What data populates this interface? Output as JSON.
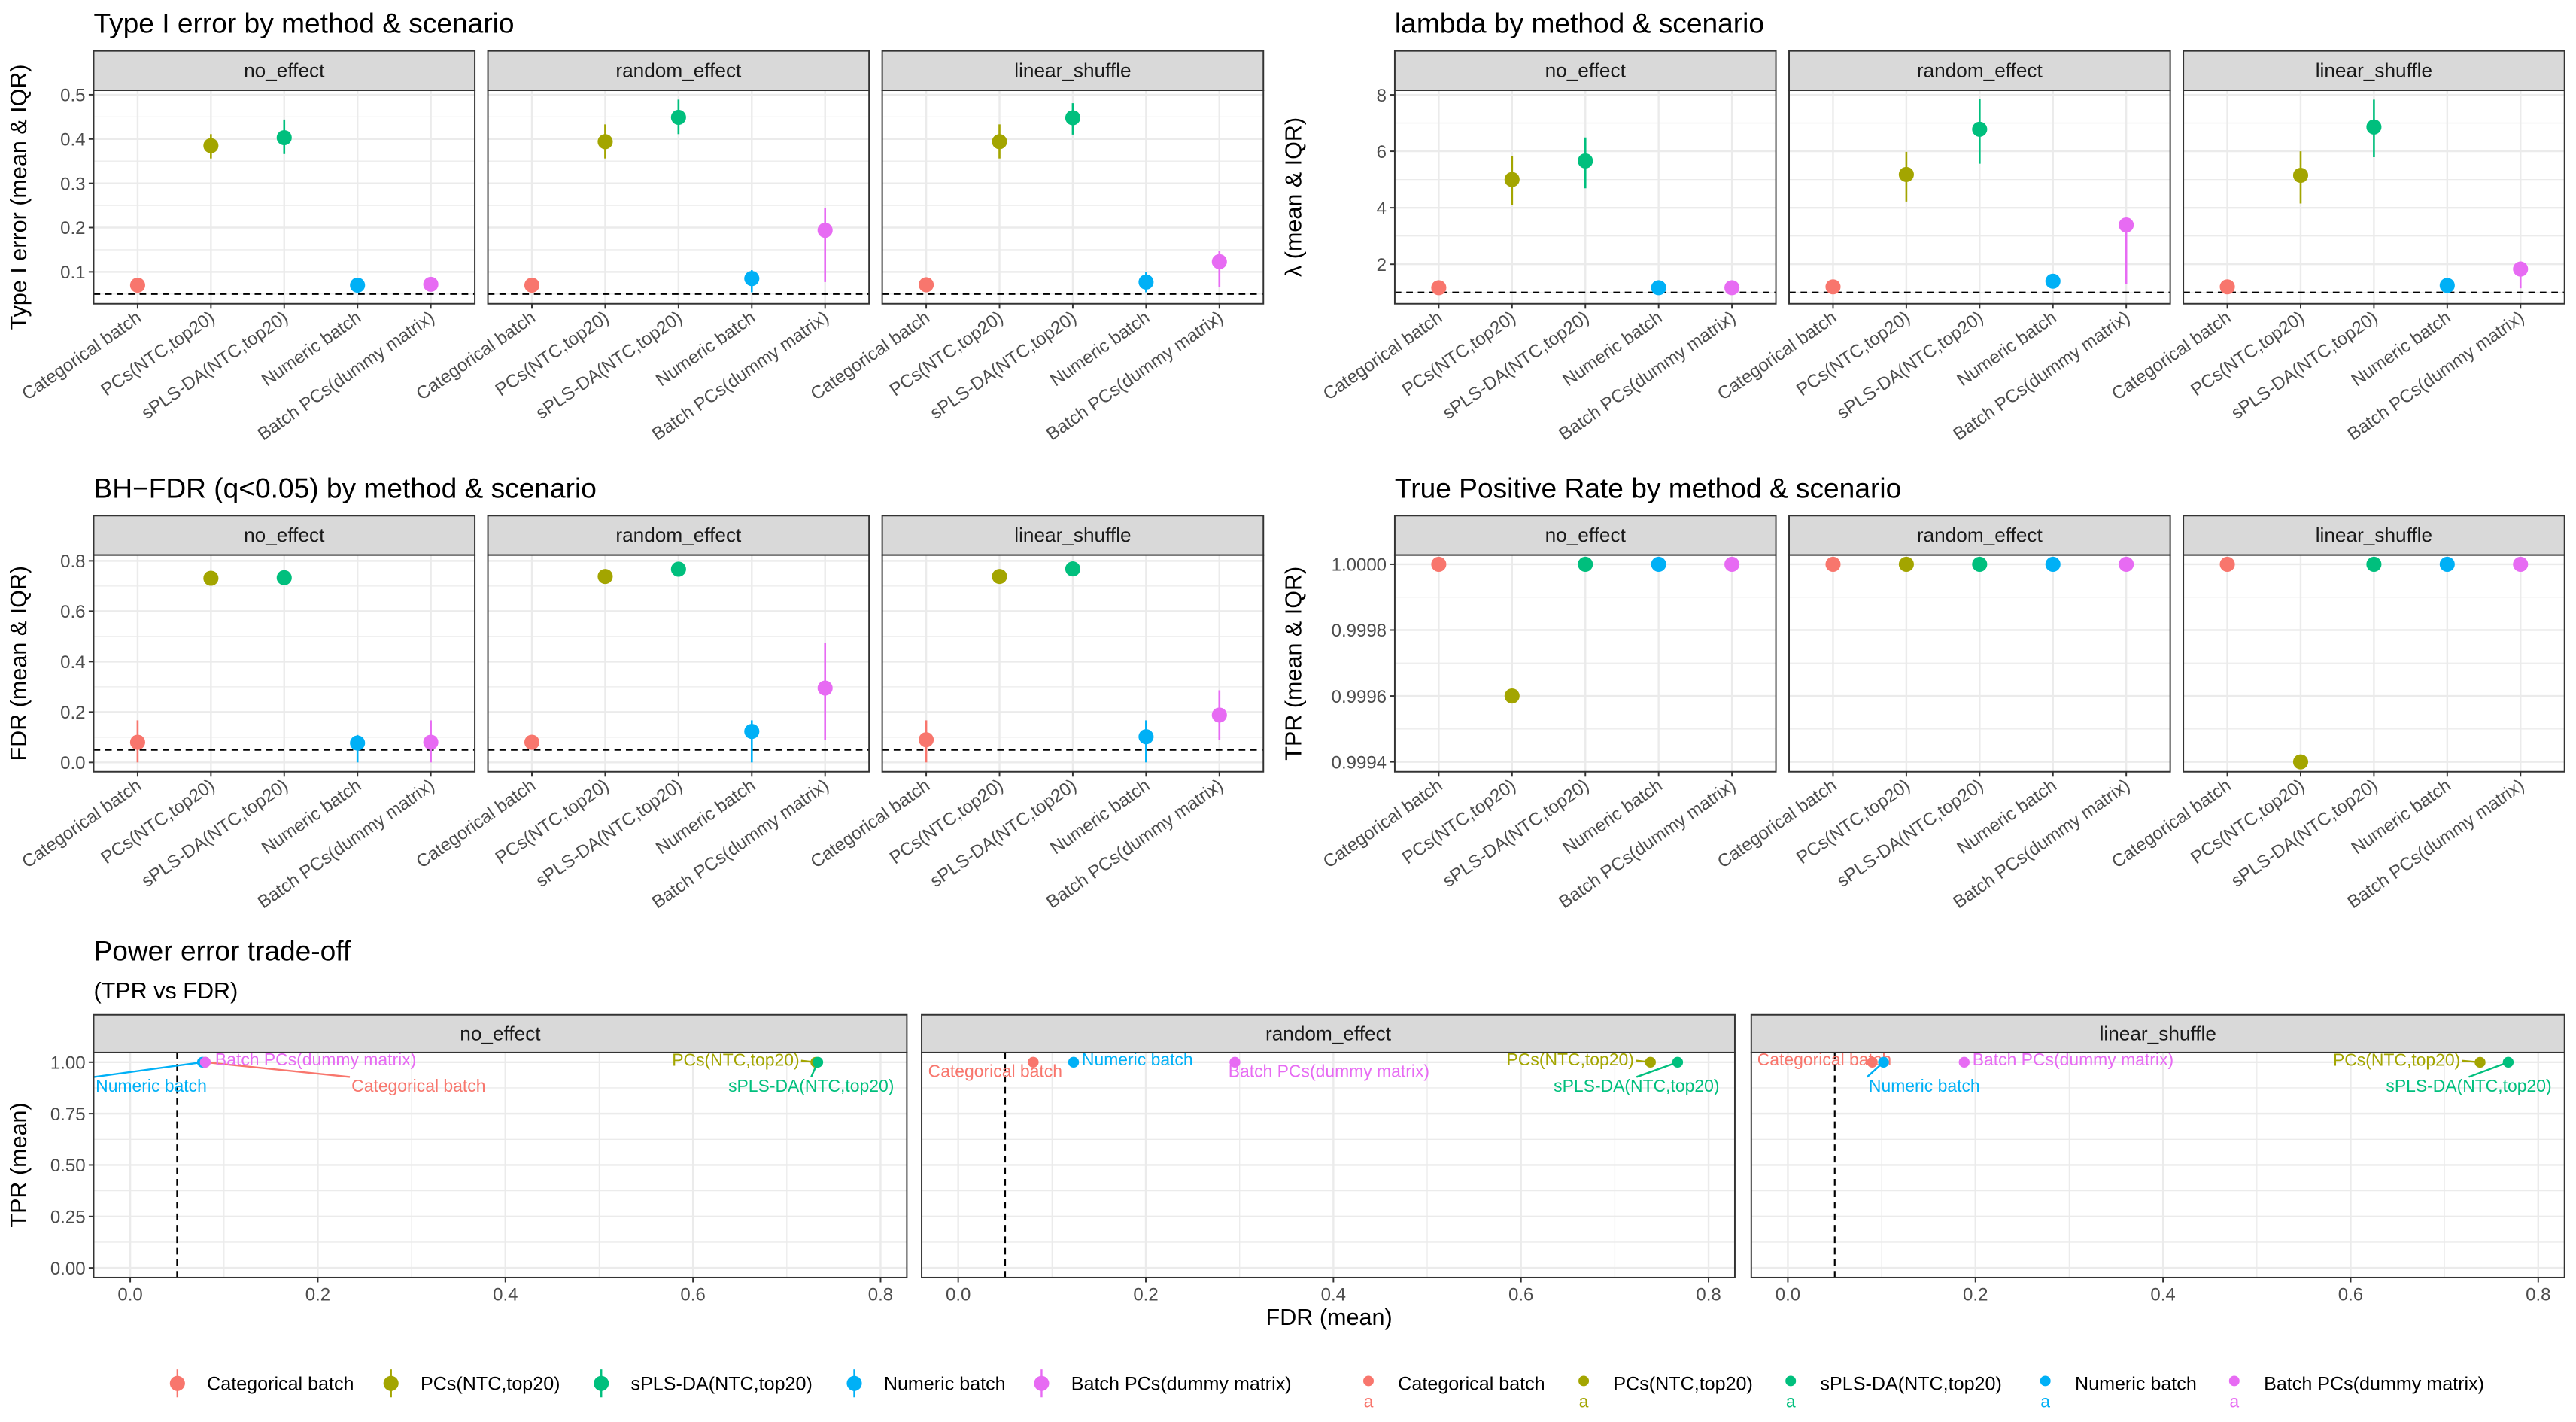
{
  "methods": [
    "Categorical batch",
    "PCs(NTC,top20)",
    "sPLS-DA(NTC,top20)",
    "Numeric batch",
    "Batch PCs(dummy matrix)"
  ],
  "colors": [
    "#F8766D",
    "#A3A500",
    "#00BF7D",
    "#00B0F6",
    "#E76BF3"
  ],
  "scenarios": [
    "no_effect",
    "random_effect",
    "linear_shuffle"
  ],
  "legend_key_text": "a",
  "chart_data": [
    {
      "type": "pointrange",
      "title": "Type I error by method & scenario",
      "ylabel": "Type I error (mean & IQR)",
      "ylim": [
        0.028,
        0.51
      ],
      "yticks": [
        "0.1",
        "0.2",
        "0.3",
        "0.4",
        "0.5"
      ],
      "reference_line": 0.05,
      "grid": true,
      "panels": [
        {
          "scenario": "no_effect",
          "mean": [
            0.07,
            0.385,
            0.403,
            0.07,
            0.072
          ],
          "lo": [
            0.07,
            0.356,
            0.366,
            0.07,
            0.072
          ],
          "hi": [
            0.07,
            0.411,
            0.444,
            0.07,
            0.072
          ]
        },
        {
          "scenario": "random_effect",
          "mean": [
            0.07,
            0.394,
            0.449,
            0.085,
            0.194
          ],
          "lo": [
            0.07,
            0.356,
            0.411,
            0.054,
            0.077
          ],
          "hi": [
            0.07,
            0.433,
            0.489,
            0.104,
            0.244
          ]
        },
        {
          "scenario": "linear_shuffle",
          "mean": [
            0.071,
            0.394,
            0.448,
            0.077,
            0.123
          ],
          "lo": [
            0.071,
            0.356,
            0.41,
            0.054,
            0.066
          ],
          "hi": [
            0.071,
            0.433,
            0.481,
            0.099,
            0.147
          ]
        }
      ]
    },
    {
      "type": "pointrange",
      "title": "lambda by method & scenario",
      "ylabel": "λ (mean & IQR)",
      "ylim": [
        0.6,
        8.16
      ],
      "yticks": [
        "2",
        "4",
        "6",
        "8"
      ],
      "reference_line": 1,
      "grid": true,
      "panels": [
        {
          "scenario": "no_effect",
          "mean": [
            1.17,
            5.0,
            5.66,
            1.17,
            1.17
          ],
          "lo": [
            1.17,
            4.09,
            4.69,
            1.17,
            1.17
          ],
          "hi": [
            1.17,
            5.83,
            6.49,
            1.17,
            1.17
          ]
        },
        {
          "scenario": "random_effect",
          "mean": [
            1.2,
            5.18,
            6.78,
            1.4,
            3.39
          ],
          "lo": [
            1.2,
            4.22,
            5.56,
            1.4,
            1.3
          ],
          "hi": [
            1.2,
            5.98,
            7.86,
            1.4,
            3.6
          ]
        },
        {
          "scenario": "linear_shuffle",
          "mean": [
            1.2,
            5.15,
            6.86,
            1.25,
            1.83
          ],
          "lo": [
            1.2,
            4.15,
            5.79,
            1.25,
            1.15
          ],
          "hi": [
            1.2,
            6.0,
            7.83,
            1.25,
            2.1
          ]
        }
      ]
    },
    {
      "type": "pointrange",
      "title": "BH−FDR (q<0.05) by method & scenario",
      "ylabel": "FDR (mean & IQR)",
      "ylim": [
        -0.037,
        0.823
      ],
      "yticks": [
        "0.0",
        "0.2",
        "0.4",
        "0.6",
        "0.8"
      ],
      "reference_line": 0.05,
      "grid": true,
      "panels": [
        {
          "scenario": "no_effect",
          "mean": [
            0.08,
            0.731,
            0.733,
            0.077,
            0.08
          ],
          "lo": [
            0.0,
            0.731,
            0.733,
            0.0,
            0.0
          ],
          "hi": [
            0.167,
            0.731,
            0.733,
            0.109,
            0.167
          ]
        },
        {
          "scenario": "random_effect",
          "mean": [
            0.08,
            0.738,
            0.767,
            0.123,
            0.295
          ],
          "lo": [
            0.08,
            0.738,
            0.767,
            0.0,
            0.09
          ],
          "hi": [
            0.08,
            0.738,
            0.767,
            0.167,
            0.474
          ]
        },
        {
          "scenario": "linear_shuffle",
          "mean": [
            0.09,
            0.738,
            0.768,
            0.102,
            0.188
          ],
          "lo": [
            0.0,
            0.738,
            0.768,
            0.0,
            0.09
          ],
          "hi": [
            0.167,
            0.738,
            0.768,
            0.167,
            0.286
          ]
        }
      ]
    },
    {
      "type": "pointrange",
      "title": "True Positive Rate by method & scenario",
      "ylabel": "TPR (mean & IQR)",
      "ylim": [
        0.99937,
        1.000028
      ],
      "yticks": [
        "0.9994",
        "0.9996",
        "0.9998",
        "1.0000"
      ],
      "grid": true,
      "panels": [
        {
          "scenario": "no_effect",
          "mean": [
            1.0,
            0.9996,
            1.0,
            1.0,
            1.0
          ],
          "lo": [
            1.0,
            0.9996,
            1.0,
            1.0,
            1.0
          ],
          "hi": [
            1.0,
            0.9996,
            1.0,
            1.0,
            1.0
          ]
        },
        {
          "scenario": "random_effect",
          "mean": [
            1.0,
            1.0,
            1.0,
            1.0,
            1.0
          ],
          "lo": [
            1.0,
            1.0,
            1.0,
            1.0,
            1.0
          ],
          "hi": [
            1.0,
            1.0,
            1.0,
            1.0,
            1.0
          ]
        },
        {
          "scenario": "linear_shuffle",
          "mean": [
            1.0,
            0.9994,
            1.0,
            1.0,
            1.0
          ],
          "lo": [
            1.0,
            0.9994,
            1.0,
            1.0,
            1.0
          ],
          "hi": [
            1.0,
            0.9994,
            1.0,
            1.0,
            1.0
          ]
        }
      ]
    },
    {
      "type": "scatter",
      "title": "Power error trade-off",
      "subtitle": "(TPR vs FDR)",
      "xlabel": "FDR (mean)",
      "ylabel": "TPR (mean)",
      "xlim": [
        -0.039,
        0.828
      ],
      "ylim": [
        -0.047,
        1.047
      ],
      "xticks": [
        "0.0",
        "0.2",
        "0.4",
        "0.6",
        "0.8"
      ],
      "yticks": [
        "0.00",
        "0.25",
        "0.50",
        "0.75",
        "1.00"
      ],
      "reference_line_x": 0.05,
      "grid": true,
      "panels": [
        {
          "scenario": "no_effect",
          "fdr": [
            0.08,
            0.731,
            0.733,
            0.077,
            0.08
          ],
          "tpr": [
            1.0,
            0.9996,
            1.0,
            1.0,
            1.0
          ]
        },
        {
          "scenario": "random_effect",
          "fdr": [
            0.08,
            0.738,
            0.767,
            0.123,
            0.295
          ],
          "tpr": [
            1.0,
            1.0,
            1.0,
            1.0,
            1.0
          ]
        },
        {
          "scenario": "linear_shuffle",
          "fdr": [
            0.09,
            0.738,
            0.768,
            0.102,
            0.188
          ],
          "tpr": [
            1.0,
            0.9994,
            1.0,
            1.0,
            1.0
          ]
        }
      ]
    }
  ]
}
